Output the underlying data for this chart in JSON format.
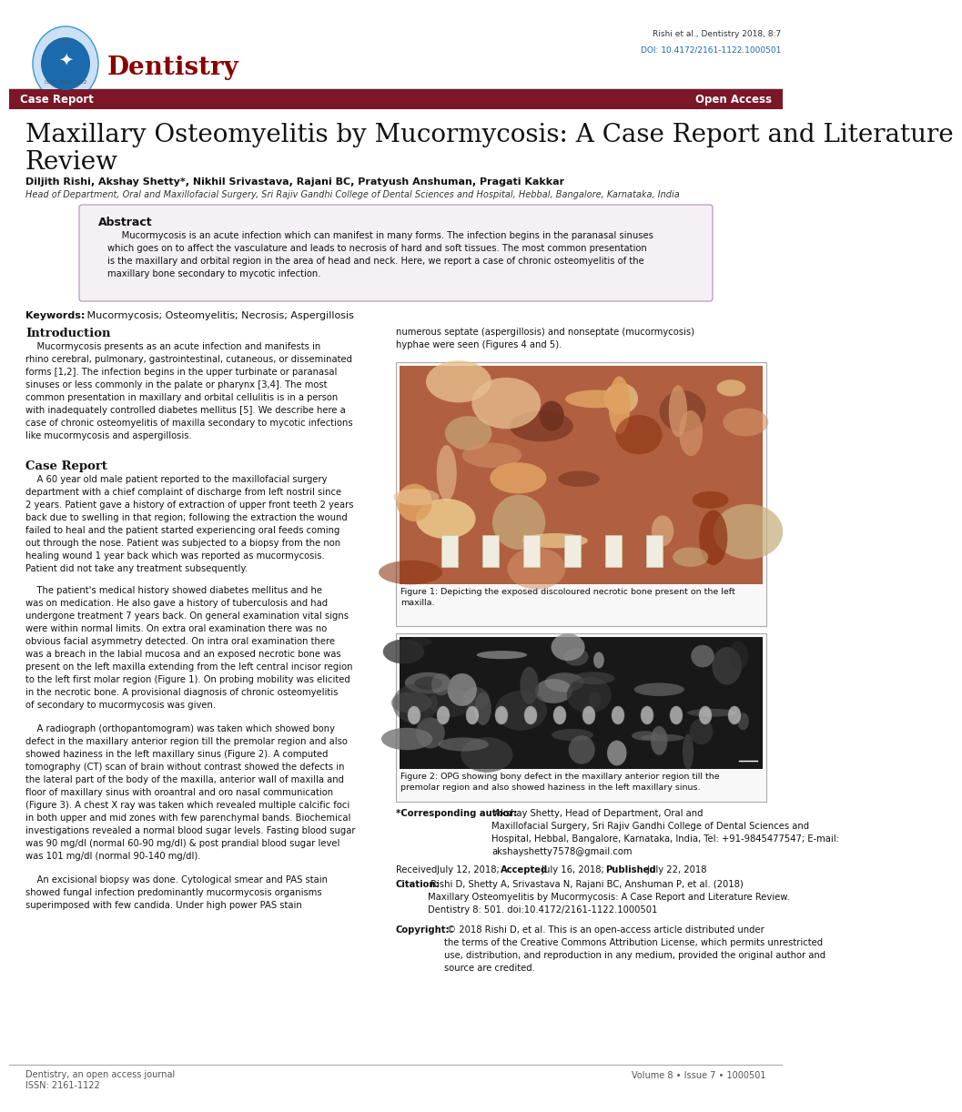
{
  "page_width": 8.5,
  "page_height": 12.02,
  "bg_color": "#ffffff",
  "header_journal": "Dentistry",
  "header_journal_color": "#8b0000",
  "header_journal_fontsize": 20,
  "header_citation": "Rishi et al., Dentistry 2018, 8:7",
  "header_doi_label": "DOI: ",
  "header_doi_link": "10.4172/2161-1122.1000501",
  "header_doi_color": "#1a6aad",
  "banner_color": "#7b1728",
  "banner_text_left": "Case Report",
  "banner_text_right": "Open Access",
  "banner_text_color": "#ffffff",
  "title_line1": "Maxillary Osteomyelitis by Mucormycosis: A Case Report and Literature",
  "title_line2": "Review",
  "title_fontsize": 20,
  "authors": "Diljith Rishi, Akshay Shetty*, Nikhil Srivastava, Rajani BC, Pratyush Anshuman, Pragati Kakkar",
  "affiliation": "Head of Department, Oral and Maxillofacial Surgery, Sri Rajiv Gandhi College of Dental Sciences and Hospital, Hebbal, Bangalore, Karnataka, India",
  "abstract_title": "Abstract",
  "abstract_body": "     Mucormycosis is an acute infection which can manifest in many forms. The infection begins in the paranasal sinuses\nwhich goes on to affect the vasculature and leads to necrosis of hard and soft tissues. The most common presentation\nis the maxillary and orbital region in the area of head and neck. Here, we report a case of chronic osteomyelitis of the\nmaxillary bone secondary to mycotic infection.",
  "keywords_bold": "Keywords:",
  "keywords_rest": " Mucormycosis; Osteomyelitis; Necrosis; Aspergillosis",
  "intro_heading": "Introduction",
  "intro_body": "    Mucormycosis presents as an acute infection and manifests in\nrhino cerebral, pulmonary, gastrointestinal, cutaneous, or disseminated\nforms [1,2]. The infection begins in the upper turbinate or paranasal\nsinuses or less commonly in the palate or pharynx [3,4]. The most\ncommon presentation in maxillary and orbital cellulitis is in a person\nwith inadequately controlled diabetes mellitus [5]. We describe here a\ncase of chronic osteomyelitis of maxilla secondary to mycotic infections\nlike mucormycosis and aspergillosis.",
  "case_heading": "Case Report",
  "case_body_1": "    A 60 year old male patient reported to the maxillofacial surgery\ndepartment with a chief complaint of discharge from left nostril since\n2 years. Patient gave a history of extraction of upper front teeth 2 years\nback due to swelling in that region; following the extraction the wound\nfailed to heal and the patient started experiencing oral feeds coming\nout through the nose. Patient was subjected to a biopsy from the non\nhealing wound 1 year back which was reported as mucormycosis.\nPatient did not take any treatment subsequently.",
  "case_body_2": "    The patient's medical history showed diabetes mellitus and he\nwas on medication. He also gave a history of tuberculosis and had\nundergone treatment 7 years back. On general examination vital signs\nwere within normal limits. On extra oral examination there was no\nobvious facial asymmetry detected. On intra oral examination there\nwas a breach in the labial mucosa and an exposed necrotic bone was\npresent on the left maxilla extending from the left central incisor region\nto the left first molar region (Figure 1). On probing mobility was elicited\nin the necrotic bone. A provisional diagnosis of chronic osteomyelitis\nof secondary to mucormycosis was given.",
  "case_body_3": "    A radiograph (orthopantomogram) was taken which showed bony\ndefect in the maxillary anterior region till the premolar region and also\nshowed haziness in the left maxillary sinus (Figure 2). A computed\ntomography (CT) scan of brain without contrast showed the defects in\nthe lateral part of the body of the maxilla, anterior wall of maxilla and\nfloor of maxillary sinus with oroantral and oro nasal communication\n(Figure 3). A chest X ray was taken which revealed multiple calcific foci\nin both upper and mid zones with few parenchymal bands. Biochemical\ninvestigations revealed a normal blood sugar levels. Fasting blood sugar\nwas 90 mg/dl (normal 60-90 mg/dl) & post prandial blood sugar level\nwas 101 mg/dl (normal 90-140 mg/dl).",
  "case_body_4": "    An excisional biopsy was done. Cytological smear and PAS stain\nshowed fungal infection predominantly mucormycosis organisms\nsuperimposed with few candida. Under high power PAS stain",
  "right_top_text": "numerous septate (aspergillosis) and nonseptate (mucormycosis)\nhyphae were seen (Figures 4 and 5).",
  "fig1_caption": "Figure 1: Depicting the exposed discoloured necrotic bone present on the left\nmaxilla.",
  "fig2_caption": "Figure 2: OPG showing bony defect in the maxillary anterior region till the\npremolar region and also showed haziness in the left maxillary sinus.",
  "corr_author_bold": "*Corresponding author:",
  "corr_author_rest": " Akshay Shetty, Head of Department, Oral and\nMaxillofacial Surgery, Sri Rajiv Gandhi College of Dental Sciences and\nHospital, Hebbal, Bangalore, Karnataka, India, Tel: +91-9845477547; E-mail:\nakshayshetty7578@gmail.com",
  "corr_email_color": "#1a6aad",
  "received_text_pre": "Received",
  "received_text": " July 12, 2018; ",
  "accepted_bold": "Accepted",
  "accepted_text": " July 16, 2018; ",
  "published_bold": "Published",
  "published_text": " July 22, 2018",
  "citation_bold": "Citation:",
  "citation_rest": " Rishi D, Shetty A, Srivastava N, Rajani BC, Anshuman P, et al. (2018)\nMaxillary Osteomyelitis by Mucormycosis: A Case Report and Literature Review.\nDentistry 8: 501. doi:10.4172/2161-1122.1000501",
  "citation_doi_color": "#1a6aad",
  "copyright_bold": "Copyright:",
  "copyright_rest": " © 2018 Rishi D, et al. This is an open-access article distributed under\nthe terms of the Creative Commons Attribution License, which permits unrestricted\nuse, distribution, and reproduction in any medium, provided the original author and\nsource are credited.",
  "footer_left_1": "Dentistry, an open access journal",
  "footer_left_2": "ISSN: 2161-1122",
  "footer_right": "Volume 8 • Issue 7 • 1000501",
  "body_fontsize": 7.2,
  "body_color": "#111111",
  "heading_color": "#111111",
  "heading_fontsize": 9.5,
  "footer_color": "#555555",
  "footer_fontsize": 7.0,
  "abstract_box_bg": "#f5f0f5",
  "abstract_box_border": "#b090b0",
  "fig_box_border": "#aaaaaa",
  "fig_box_bg": "#f8f8f8",
  "img1_bg": "#c8956a",
  "img2_bg": "#202020",
  "logo_outer_color": "#cce0f5",
  "logo_inner_color": "#1a6aad",
  "issn_text": "ISSN: 2161-1122"
}
